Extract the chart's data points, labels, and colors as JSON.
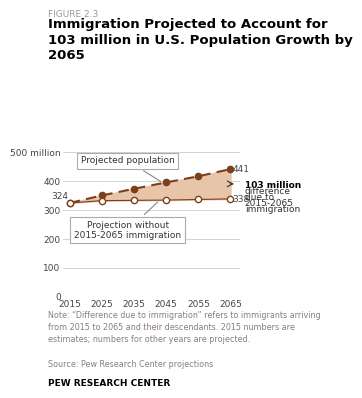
{
  "figure_label": "FIGURE 2.3",
  "title": "Immigration Projected to Account for\n103 million in U.S. Population Growth by\n2065",
  "years": [
    2015,
    2025,
    2035,
    2045,
    2055,
    2065
  ],
  "projected_pop": [
    324,
    350,
    373,
    395,
    416,
    441
  ],
  "without_immigration": [
    324,
    332,
    333,
    334,
    336,
    338
  ],
  "line_color": "#7B3F1E",
  "fill_color": "#E8C4A8",
  "xlim": [
    2013,
    2068
  ],
  "ylim": [
    0,
    520
  ],
  "yticks": [
    0,
    100,
    200,
    300,
    400,
    500
  ],
  "xticks": [
    2015,
    2025,
    2035,
    2045,
    2055,
    2065
  ],
  "note": "Note: “Difference due to immigration” refers to immigrants arriving\nfrom 2015 to 2065 and their descendants. 2015 numbers are\nestimates; numbers for other years are projected.",
  "source": "Source: Pew Research Center projections",
  "pew": "PEW RESEARCH CENTER",
  "bg_color": "#FFFFFF",
  "note_color": "#8B7D7D",
  "source_color": "#8B7D7D",
  "pew_color": "#000000"
}
